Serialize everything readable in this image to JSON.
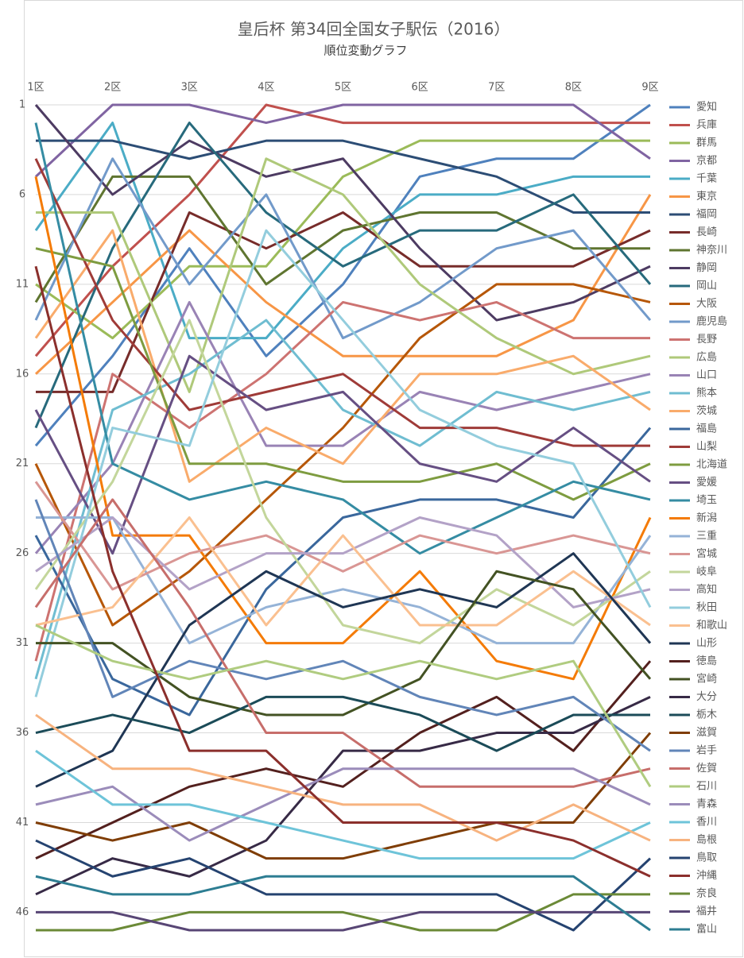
{
  "chart_data": {
    "type": "line",
    "title": "皇后杯 第34回全国女子駅伝（2016）",
    "subtitle": "順位変動グラフ",
    "categories": [
      "1区",
      "2区",
      "3区",
      "4区",
      "5区",
      "6区",
      "7区",
      "8区",
      "9区"
    ],
    "ylim": [
      1,
      47
    ],
    "yticks": [
      1,
      6,
      11,
      16,
      21,
      26,
      31,
      36,
      41,
      46
    ],
    "y_reversed": true,
    "grid": true,
    "legend": "right",
    "series": [
      {
        "name": "愛知",
        "color": "#4f81bd",
        "values": [
          20,
          15,
          9,
          15,
          11,
          5,
          4,
          4,
          1
        ]
      },
      {
        "name": "兵庫",
        "color": "#c0504d",
        "values": [
          15,
          10,
          6,
          1,
          2,
          2,
          2,
          2,
          2
        ]
      },
      {
        "name": "群馬",
        "color": "#9bbb59",
        "values": [
          11,
          14,
          10,
          10,
          5,
          3,
          3,
          3,
          3
        ]
      },
      {
        "name": "京都",
        "color": "#8064a2",
        "values": [
          5,
          1,
          1,
          2,
          1,
          1,
          1,
          1,
          4
        ]
      },
      {
        "name": "千葉",
        "color": "#4bacc6",
        "values": [
          8,
          2,
          14,
          14,
          9,
          6,
          6,
          5,
          5
        ]
      },
      {
        "name": "東京",
        "color": "#f79646",
        "values": [
          16,
          12,
          8,
          12,
          15,
          15,
          15,
          13,
          6
        ]
      },
      {
        "name": "福岡",
        "color": "#2c4d75",
        "values": [
          3,
          3,
          4,
          3,
          3,
          4,
          5,
          7,
          7
        ]
      },
      {
        "name": "長崎",
        "color": "#772c2a",
        "values": [
          17,
          17,
          7,
          9,
          7,
          10,
          10,
          10,
          8
        ]
      },
      {
        "name": "神奈川",
        "color": "#5f7530",
        "values": [
          12,
          5,
          5,
          11,
          8,
          7,
          7,
          9,
          9
        ]
      },
      {
        "name": "静岡",
        "color": "#4d3b62",
        "values": [
          1,
          6,
          3,
          5,
          4,
          9,
          13,
          12,
          10
        ]
      },
      {
        "name": "岡山",
        "color": "#276a7c",
        "values": [
          19,
          9,
          2,
          7,
          10,
          8,
          8,
          6,
          11
        ]
      },
      {
        "name": "大阪",
        "color": "#b65708",
        "values": [
          21,
          30,
          27,
          23,
          19,
          14,
          11,
          11,
          12
        ]
      },
      {
        "name": "鹿児島",
        "color": "#729aca",
        "values": [
          13,
          4,
          11,
          6,
          14,
          12,
          9,
          8,
          13
        ]
      },
      {
        "name": "長野",
        "color": "#cd7371",
        "values": [
          32,
          16,
          19,
          16,
          12,
          13,
          12,
          14,
          14
        ]
      },
      {
        "name": "広島",
        "color": "#afc97a",
        "values": [
          7,
          7,
          17,
          4,
          6,
          11,
          14,
          16,
          15
        ]
      },
      {
        "name": "山口",
        "color": "#9983b5",
        "values": [
          26,
          21,
          12,
          20,
          20,
          17,
          18,
          17,
          16
        ]
      },
      {
        "name": "熊本",
        "color": "#6fbdd1",
        "values": [
          33,
          18,
          16,
          13,
          18,
          20,
          17,
          18,
          17
        ]
      },
      {
        "name": "茨城",
        "color": "#f9ab6b",
        "values": [
          14,
          8,
          22,
          19,
          21,
          16,
          16,
          15,
          18
        ]
      },
      {
        "name": "福島",
        "color": "#3a679c",
        "values": [
          25,
          33,
          35,
          28,
          24,
          23,
          23,
          24,
          19
        ]
      },
      {
        "name": "山梨",
        "color": "#9f3b38",
        "values": [
          4,
          13,
          18,
          17,
          16,
          19,
          19,
          20,
          20
        ]
      },
      {
        "name": "北海道",
        "color": "#7e9c40",
        "values": [
          9,
          10,
          21,
          21,
          22,
          22,
          21,
          23,
          21
        ]
      },
      {
        "name": "愛媛",
        "color": "#664f83",
        "values": [
          18,
          26,
          15,
          18,
          17,
          21,
          22,
          19,
          22
        ]
      },
      {
        "name": "埼玉",
        "color": "#358ca3",
        "values": [
          2,
          21,
          23,
          22,
          23,
          26,
          24,
          22,
          23
        ]
      },
      {
        "name": "新潟",
        "color": "#f47b07",
        "values": [
          5,
          25,
          25,
          31,
          31,
          27,
          32,
          33,
          24
        ]
      },
      {
        "name": "三重",
        "color": "#95b3d7",
        "values": [
          24,
          24,
          31,
          29,
          28,
          29,
          31,
          31,
          25
        ]
      },
      {
        "name": "宮城",
        "color": "#d99694",
        "values": [
          22,
          28,
          26,
          25,
          27,
          25,
          26,
          25,
          26
        ]
      },
      {
        "name": "岐阜",
        "color": "#c3d69b",
        "values": [
          28,
          22,
          13,
          24,
          30,
          31,
          28,
          30,
          27
        ]
      },
      {
        "name": "高知",
        "color": "#b3a2c7",
        "values": [
          27,
          24,
          28,
          26,
          26,
          24,
          25,
          29,
          28
        ]
      },
      {
        "name": "秋田",
        "color": "#93cddd",
        "values": [
          34,
          19,
          20,
          8,
          13,
          18,
          20,
          21,
          29
        ]
      },
      {
        "name": "和歌山",
        "color": "#fac090",
        "values": [
          30,
          29,
          24,
          30,
          25,
          30,
          30,
          27,
          30
        ]
      },
      {
        "name": "山形",
        "color": "#1f3654",
        "values": [
          39,
          37,
          30,
          27,
          29,
          28,
          29,
          26,
          31
        ]
      },
      {
        "name": "徳島",
        "color": "#53201e",
        "values": [
          43,
          41,
          39,
          38,
          39,
          36,
          34,
          37,
          32
        ]
      },
      {
        "name": "宮崎",
        "color": "#435223",
        "values": [
          31,
          31,
          34,
          35,
          35,
          33,
          27,
          28,
          33
        ]
      },
      {
        "name": "大分",
        "color": "#372a46",
        "values": [
          45,
          43,
          44,
          42,
          37,
          37,
          36,
          36,
          34
        ]
      },
      {
        "name": "栃木",
        "color": "#1b4b58",
        "values": [
          36,
          35,
          36,
          34,
          34,
          35,
          37,
          35,
          35
        ]
      },
      {
        "name": "滋賀",
        "color": "#7f3d05",
        "values": [
          41,
          42,
          41,
          43,
          43,
          42,
          41,
          41,
          36
        ]
      },
      {
        "name": "岩手",
        "color": "#6185b8",
        "values": [
          23,
          34,
          32,
          33,
          32,
          34,
          35,
          34,
          37
        ]
      },
      {
        "name": "佐賀",
        "color": "#c76e6b",
        "values": [
          29,
          23,
          29,
          36,
          36,
          39,
          39,
          39,
          38
        ]
      },
      {
        "name": "石川",
        "color": "#b0cc80",
        "values": [
          30,
          32,
          33,
          32,
          33,
          32,
          33,
          32,
          39
        ]
      },
      {
        "name": "青森",
        "color": "#9b8cba",
        "values": [
          40,
          39,
          42,
          40,
          38,
          38,
          38,
          38,
          40
        ]
      },
      {
        "name": "香川",
        "color": "#6ec4d9",
        "values": [
          37,
          40,
          40,
          41,
          42,
          43,
          43,
          43,
          41
        ]
      },
      {
        "name": "島根",
        "color": "#f7b37f",
        "values": [
          35,
          38,
          38,
          39,
          40,
          40,
          42,
          40,
          42
        ]
      },
      {
        "name": "鳥取",
        "color": "#254370",
        "values": [
          42,
          44,
          43,
          45,
          45,
          45,
          45,
          47,
          43
        ]
      },
      {
        "name": "沖縄",
        "color": "#8b2f2c",
        "values": [
          10,
          27,
          37,
          37,
          41,
          41,
          41,
          42,
          44
        ]
      },
      {
        "name": "奈良",
        "color": "#6b8a37",
        "values": [
          47,
          47,
          46,
          46,
          46,
          47,
          47,
          45,
          45
        ]
      },
      {
        "name": "福井",
        "color": "#584675",
        "values": [
          46,
          46,
          47,
          47,
          47,
          46,
          46,
          46,
          46
        ]
      },
      {
        "name": "富山",
        "color": "#2d7d92",
        "values": [
          44,
          45,
          45,
          44,
          44,
          44,
          44,
          44,
          47
        ]
      }
    ]
  }
}
